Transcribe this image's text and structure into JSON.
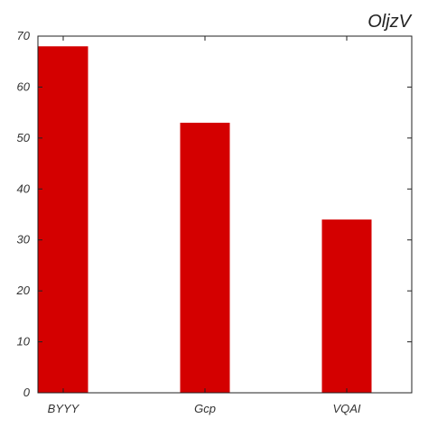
{
  "chart_data": {
    "type": "bar",
    "title": "OljzV",
    "xlabel": "",
    "ylabel": "",
    "categories": [
      "BYYY",
      "Gcp",
      "VQAI"
    ],
    "values": [
      68,
      53,
      34
    ],
    "ylim": [
      0,
      70
    ],
    "yticks": [
      0,
      10,
      20,
      30,
      40,
      50,
      60,
      70
    ],
    "grid": false,
    "bar_color": "#d40000"
  }
}
